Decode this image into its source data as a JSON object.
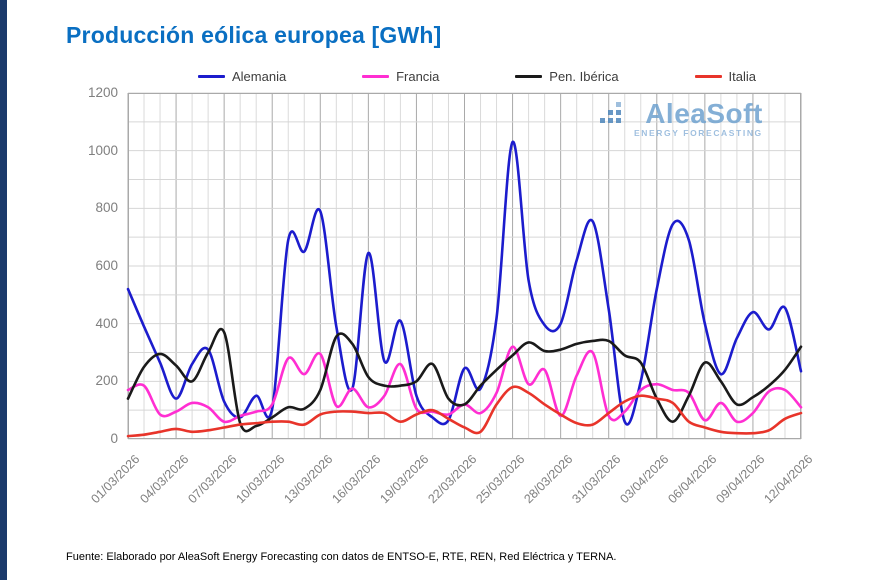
{
  "title": {
    "text": "Producción eólica europea [GWh]",
    "color": "#0a6fc2"
  },
  "watermark": {
    "brand": "AleaSoft",
    "tagline": "ENERGY FORECASTING",
    "brand_color": "#6fa2cf",
    "dots_color": "#4d86bb"
  },
  "footer": {
    "text": "Fuente: Elaborado por AleaSoft Energy Forecasting con datos de ENTSO-E, RTE, REN, Red Eléctrica y TERNA."
  },
  "accent": {
    "left_bar_color": "#1b3a6b"
  },
  "chart_data": {
    "type": "line",
    "title": "Producción eólica europea [GWh]",
    "ylabel": "GWh",
    "xlabel": "",
    "ylim": [
      0,
      1200
    ],
    "y_tick_step": 200,
    "y_grid_step": 100,
    "x_label_every": 3,
    "grid": true,
    "legend_position": "top",
    "x": [
      "01/03/2026",
      "02/03/2026",
      "03/03/2026",
      "04/03/2026",
      "05/03/2026",
      "06/03/2026",
      "07/03/2026",
      "08/03/2026",
      "09/03/2026",
      "10/03/2026",
      "11/03/2026",
      "12/03/2026",
      "13/03/2026",
      "14/03/2026",
      "15/03/2026",
      "16/03/2026",
      "17/03/2026",
      "18/03/2026",
      "19/03/2026",
      "20/03/2026",
      "21/03/2026",
      "22/03/2026",
      "23/03/2026",
      "24/03/2026",
      "25/03/2026",
      "26/03/2026",
      "27/03/2026",
      "28/03/2026",
      "29/03/2026",
      "30/03/2026",
      "31/03/2026",
      "01/04/2026",
      "02/04/2026",
      "03/04/2026",
      "04/04/2026",
      "05/04/2026",
      "06/04/2026",
      "07/04/2026",
      "08/04/2026",
      "09/04/2026",
      "10/04/2026",
      "11/04/2026",
      "12/04/2026"
    ],
    "series": [
      {
        "name": "Alemania",
        "color": "#1c1ccd",
        "values": [
          520,
          390,
          265,
          140,
          260,
          310,
          130,
          75,
          150,
          105,
          690,
          650,
          790,
          390,
          175,
          645,
          270,
          410,
          150,
          75,
          65,
          245,
          175,
          420,
          1030,
          550,
          395,
          400,
          620,
          755,
          450,
          60,
          200,
          520,
          745,
          690,
          400,
          225,
          350,
          440,
          380,
          455,
          235
        ]
      },
      {
        "name": "Francia",
        "color": "#ff2ed2",
        "values": [
          170,
          185,
          85,
          95,
          125,
          110,
          60,
          80,
          95,
          120,
          280,
          225,
          295,
          115,
          175,
          110,
          150,
          260,
          105,
          95,
          85,
          120,
          90,
          160,
          320,
          190,
          240,
          80,
          220,
          300,
          80,
          95,
          170,
          190,
          170,
          160,
          65,
          125,
          60,
          90,
          165,
          170,
          110
        ]
      },
      {
        "name": "Pen. Ibérica",
        "color": "#1a1a1a",
        "values": [
          140,
          250,
          295,
          255,
          200,
          300,
          370,
          55,
          45,
          75,
          110,
          105,
          170,
          355,
          330,
          215,
          185,
          185,
          200,
          260,
          140,
          120,
          185,
          240,
          290,
          335,
          305,
          310,
          330,
          340,
          340,
          290,
          265,
          140,
          60,
          150,
          265,
          200,
          120,
          145,
          185,
          240,
          320
        ]
      },
      {
        "name": "Italia",
        "color": "#e8342a",
        "values": [
          10,
          15,
          25,
          35,
          25,
          30,
          40,
          50,
          55,
          60,
          60,
          50,
          85,
          95,
          95,
          90,
          90,
          60,
          85,
          100,
          70,
          40,
          25,
          120,
          180,
          160,
          120,
          85,
          55,
          50,
          90,
          130,
          150,
          140,
          125,
          60,
          40,
          25,
          20,
          20,
          30,
          70,
          90
        ]
      }
    ]
  }
}
